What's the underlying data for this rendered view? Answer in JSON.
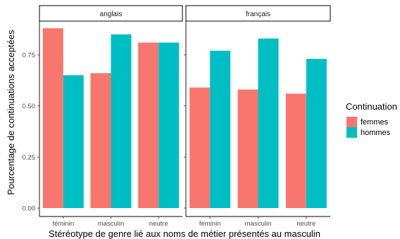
{
  "chart_data": {
    "type": "bar",
    "xlabel": "Stéréotype de genre lié aux noms de métier présentés au masculin",
    "ylabel": "Pourcentage de continuations acceptées",
    "ylim": [
      0,
      0.92
    ],
    "y_ticks": [
      "0.00",
      "0.25",
      "0.50",
      "0.75"
    ],
    "categories": [
      "féminin",
      "masculin",
      "neutre"
    ],
    "legend": {
      "title": "Continuation",
      "placement": "right",
      "entries": [
        {
          "name": "femmes",
          "color": "#F8766D"
        },
        {
          "name": "hommes",
          "color": "#00BFC4"
        }
      ]
    },
    "panels": [
      {
        "label": "anglais",
        "series": [
          {
            "name": "femmes",
            "values": [
              0.88,
              0.66,
              0.81
            ]
          },
          {
            "name": "hommes",
            "values": [
              0.65,
              0.85,
              0.81
            ]
          }
        ]
      },
      {
        "label": "français",
        "series": [
          {
            "name": "femmes",
            "values": [
              0.59,
              0.58,
              0.56
            ]
          },
          {
            "name": "hommes",
            "values": [
              0.77,
              0.83,
              0.73
            ]
          }
        ]
      }
    ]
  }
}
